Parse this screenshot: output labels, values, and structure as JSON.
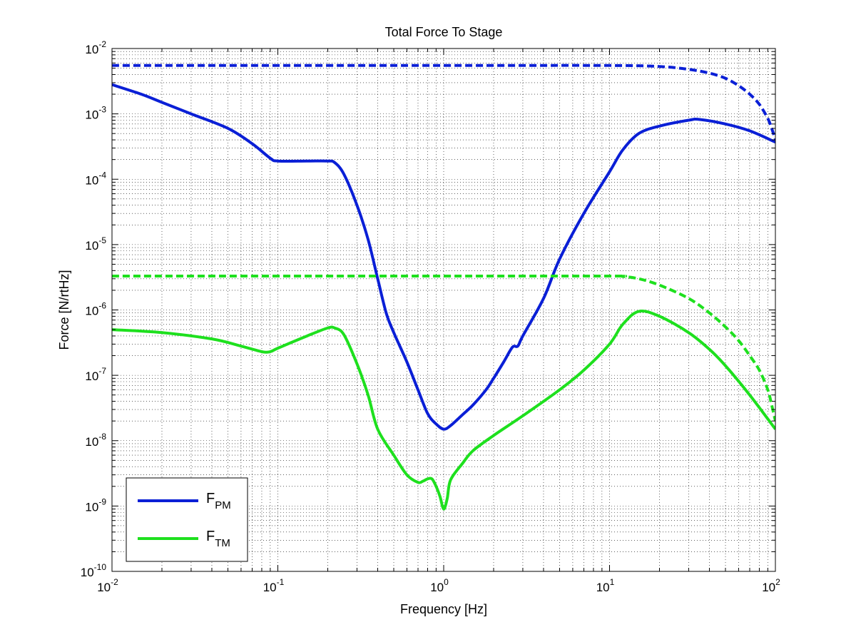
{
  "chart_data": {
    "type": "line",
    "title": "Total Force To Stage",
    "xlabel": "Frequency [Hz]",
    "ylabel": "Force [N/rtHz]",
    "xscale": "log",
    "yscale": "log",
    "xlim": [
      0.01,
      100
    ],
    "ylim": [
      1e-10,
      0.01
    ],
    "grid": true,
    "legend_position": "bottom-left",
    "x_tick_labels": [
      {
        "base": "10",
        "exp": "-2"
      },
      {
        "base": "10",
        "exp": "-1"
      },
      {
        "base": "10",
        "exp": "0"
      },
      {
        "base": "10",
        "exp": "1"
      },
      {
        "base": "10",
        "exp": "2"
      }
    ],
    "y_tick_labels": [
      {
        "base": "10",
        "exp": "-10"
      },
      {
        "base": "10",
        "exp": "-9"
      },
      {
        "base": "10",
        "exp": "-8"
      },
      {
        "base": "10",
        "exp": "-7"
      },
      {
        "base": "10",
        "exp": "-6"
      },
      {
        "base": "10",
        "exp": "-5"
      },
      {
        "base": "10",
        "exp": "-4"
      },
      {
        "base": "10",
        "exp": "-3"
      },
      {
        "base": "10",
        "exp": "-2"
      }
    ],
    "legend": [
      {
        "main": "F",
        "sub": "PM",
        "color": "#0a1fd6"
      },
      {
        "main": "F",
        "sub": "TM",
        "color": "#1ee01e"
      }
    ],
    "series": [
      {
        "color": "#0a1fd6",
        "style": "dashed",
        "x": [
          0.01,
          1,
          10,
          20,
          30,
          40,
          50,
          60,
          70,
          80,
          90,
          95,
          100
        ],
        "y": [
          0.0055,
          0.0055,
          0.0055,
          0.0053,
          0.0048,
          0.0042,
          0.0035,
          0.0027,
          0.002,
          0.0014,
          0.00085,
          0.0006,
          0.0004
        ]
      },
      {
        "color": "#0a1fd6",
        "style": "solid",
        "x": [
          0.01,
          0.015,
          0.02,
          0.03,
          0.05,
          0.07,
          0.09,
          0.1,
          0.15,
          0.2,
          0.22,
          0.25,
          0.3,
          0.35,
          0.4,
          0.45,
          0.5,
          0.6,
          0.7,
          0.8,
          0.9,
          1.0,
          1.1,
          1.3,
          1.5,
          1.8,
          2.0,
          2.3,
          2.6,
          2.8,
          3.0,
          4.0,
          5.0,
          7.0,
          10,
          12,
          15,
          20,
          30,
          35,
          50,
          70,
          100
        ],
        "y": [
          0.0028,
          0.002,
          0.0015,
          0.001,
          0.0006,
          0.00035,
          0.00021,
          0.00019,
          0.00019,
          0.00019,
          0.00018,
          0.00012,
          4e-05,
          1.2e-05,
          3e-06,
          9e-07,
          4.5e-07,
          1.6e-07,
          6e-08,
          2.6e-08,
          1.8e-08,
          1.5e-08,
          1.7e-08,
          2.5e-08,
          3.5e-08,
          6e-08,
          9e-08,
          1.6e-07,
          2.7e-07,
          2.8e-07,
          4e-07,
          1.5e-06,
          6e-06,
          3e-05,
          0.00013,
          0.00028,
          0.0005,
          0.00065,
          0.0008,
          0.00082,
          0.0007,
          0.00055,
          0.00037
        ]
      },
      {
        "color": "#1ee01e",
        "style": "dashed",
        "x": [
          0.01,
          1,
          10,
          12,
          15,
          20,
          30,
          40,
          50,
          60,
          70,
          80,
          90,
          95,
          100
        ],
        "y": [
          3.3e-06,
          3.3e-06,
          3.3e-06,
          3.25e-06,
          3e-06,
          2.4e-06,
          1.5e-06,
          9e-07,
          5.5e-07,
          3.4e-07,
          2e-07,
          1.2e-07,
          6e-08,
          3.5e-08,
          2e-08
        ]
      },
      {
        "color": "#1ee01e",
        "style": "solid",
        "x": [
          0.01,
          0.02,
          0.04,
          0.06,
          0.08,
          0.09,
          0.1,
          0.15,
          0.2,
          0.22,
          0.25,
          0.3,
          0.35,
          0.4,
          0.5,
          0.6,
          0.7,
          0.75,
          0.8,
          0.85,
          0.9,
          0.95,
          1.0,
          1.05,
          1.1,
          1.3,
          1.5,
          2,
          3,
          5,
          7,
          10,
          12,
          15,
          20,
          30,
          40,
          50,
          70,
          100
        ],
        "y": [
          5e-07,
          4.5e-07,
          3.6e-07,
          2.8e-07,
          2.3e-07,
          2.3e-07,
          2.6e-07,
          4e-07,
          5.3e-07,
          5.3e-07,
          4.2e-07,
          1.5e-07,
          5e-08,
          1.5e-08,
          6e-09,
          3e-09,
          2.3e-09,
          2.4e-09,
          2.6e-09,
          2.6e-09,
          2e-09,
          1.4e-09,
          9e-10,
          1.3e-09,
          2.5e-09,
          4.5e-09,
          7e-09,
          1.2e-08,
          2.4e-08,
          6e-08,
          1.2e-07,
          3e-07,
          6e-07,
          9.5e-07,
          8e-07,
          4.5e-07,
          2.5e-07,
          1.4e-07,
          5e-08,
          1.5e-08
        ]
      }
    ]
  }
}
